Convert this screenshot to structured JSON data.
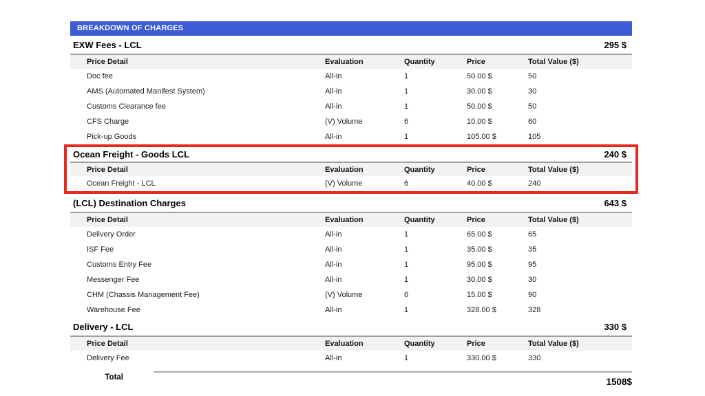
{
  "title_bar": {
    "label": "BREAKDOWN OF CHARGES"
  },
  "table": {
    "columns": [
      "Price Detail",
      "Evaluation",
      "Quantity",
      "Price",
      "Total Value ($)"
    ]
  },
  "sections": [
    {
      "name": "EXW Fees - LCL",
      "total": "295 $",
      "highlighted": false,
      "rows": [
        {
          "detail": "Doc fee",
          "evaluation": "All-in",
          "quantity": "1",
          "price": "50.00 $",
          "total_value": "50"
        },
        {
          "detail": "AMS (Automated Manifest System)",
          "evaluation": "All-in",
          "quantity": "1",
          "price": "30.00 $",
          "total_value": "30"
        },
        {
          "detail": "Customs Clearance fee",
          "evaluation": "All-in",
          "quantity": "1",
          "price": "50.00 $",
          "total_value": "50"
        },
        {
          "detail": "CFS Charge",
          "evaluation": "(V) Volume",
          "quantity": "6",
          "price": "10.00 $",
          "total_value": "60"
        },
        {
          "detail": "Pick-up Goods",
          "evaluation": "All-in",
          "quantity": "1",
          "price": "105.00 $",
          "total_value": "105"
        }
      ]
    },
    {
      "name": "Ocean Freight - Goods LCL",
      "total": "240 $",
      "highlighted": true,
      "rows": [
        {
          "detail": "Ocean Freight - LCL",
          "evaluation": "(V) Volume",
          "quantity": "6",
          "price": "40.00 $",
          "total_value": "240"
        }
      ]
    },
    {
      "name": "(LCL) Destination Charges",
      "total": "643 $",
      "highlighted": false,
      "rows": [
        {
          "detail": "Delivery Order",
          "evaluation": "All-in",
          "quantity": "1",
          "price": "65.00 $",
          "total_value": "65"
        },
        {
          "detail": "ISF Fee",
          "evaluation": "All-in",
          "quantity": "1",
          "price": "35.00 $",
          "total_value": "35"
        },
        {
          "detail": "Customs Entry Fee",
          "evaluation": "All-in",
          "quantity": "1",
          "price": "95.00 $",
          "total_value": "95"
        },
        {
          "detail": "Messenger Fee",
          "evaluation": "All-in",
          "quantity": "1",
          "price": "30.00 $",
          "total_value": "30"
        },
        {
          "detail": "CHM (Chassis Management Fee)",
          "evaluation": "(V) Volume",
          "quantity": "6",
          "price": "15.00 $",
          "total_value": "90"
        },
        {
          "detail": "Warehouse Fee",
          "evaluation": "All-in",
          "quantity": "1",
          "price": "328.00 $",
          "total_value": "328"
        }
      ]
    },
    {
      "name": "Delivery - LCL",
      "total": "330 $",
      "highlighted": false,
      "rows": [
        {
          "detail": "Delivery Fee",
          "evaluation": "All-in",
          "quantity": "1",
          "price": "330.00 $",
          "total_value": "330"
        }
      ]
    }
  ],
  "grand_total": {
    "label": "Total",
    "value": "1508$"
  },
  "colors": {
    "title_bar_bg": "#3E5CD6",
    "highlight_border": "#E8271E",
    "header_row_bg": "#F2F2F2",
    "separator": "#9E9E9E"
  }
}
